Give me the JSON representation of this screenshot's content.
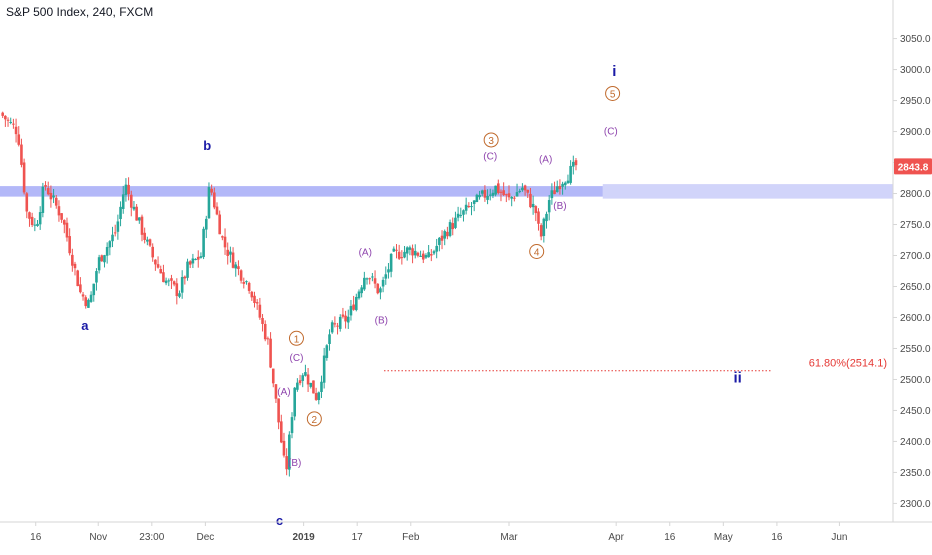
{
  "header": {
    "symbol_title": "S&P 500 Index, 240, FXCM"
  },
  "colors": {
    "up": "#26a69a",
    "down": "#ef5350",
    "zone": "#9aa0f5",
    "wave_primary": "#1a1aa6",
    "wave_intermediate": "#c06a2d",
    "wave_minor": "#8e44ad",
    "fib": "#e53935",
    "price_badge": "#ef5350",
    "axis_text": "#4a4a4a",
    "axis_line": "#d6d6d6"
  },
  "chart_data": {
    "type": "candlestick",
    "title": "S&P 500 Index, 240, FXCM",
    "y_range": [
      2270,
      3080
    ],
    "y_ticks": [
      2300,
      2350,
      2400,
      2450,
      2500,
      2550,
      2600,
      2650,
      2700,
      2750,
      2800,
      2850,
      2900,
      2950,
      3000,
      3050
    ],
    "x_ticks": [
      {
        "label": "16",
        "x": 0.04
      },
      {
        "label": "Nov",
        "x": 0.11
      },
      {
        "label": "23:00",
        "x": 0.17
      },
      {
        "label": "Dec",
        "x": 0.23
      },
      {
        "label": "2019",
        "x": 0.34
      },
      {
        "label": "17",
        "x": 0.4
      },
      {
        "label": "Feb",
        "x": 0.46
      },
      {
        "label": "Mar",
        "x": 0.57
      },
      {
        "label": "Apr",
        "x": 0.69
      },
      {
        "label": "16",
        "x": 0.75
      },
      {
        "label": "May",
        "x": 0.81
      },
      {
        "label": "16",
        "x": 0.87
      },
      {
        "label": "Jun",
        "x": 0.94
      }
    ],
    "last_price": 2843.8,
    "price_path": [
      [
        0.0,
        2930
      ],
      [
        0.02,
        2900
      ],
      [
        0.03,
        2770
      ],
      [
        0.04,
        2745
      ],
      [
        0.05,
        2815
      ],
      [
        0.07,
        2760
      ],
      [
        0.08,
        2700
      ],
      [
        0.09,
        2640
      ],
      [
        0.1,
        2620
      ],
      [
        0.11,
        2690
      ],
      [
        0.13,
        2740
      ],
      [
        0.14,
        2815
      ],
      [
        0.155,
        2755
      ],
      [
        0.17,
        2700
      ],
      [
        0.185,
        2660
      ],
      [
        0.2,
        2640
      ],
      [
        0.21,
        2680
      ],
      [
        0.225,
        2700
      ],
      [
        0.235,
        2815
      ],
      [
        0.25,
        2720
      ],
      [
        0.265,
        2680
      ],
      [
        0.28,
        2650
      ],
      [
        0.3,
        2560
      ],
      [
        0.315,
        2400
      ],
      [
        0.32,
        2345
      ],
      [
        0.33,
        2490
      ],
      [
        0.34,
        2515
      ],
      [
        0.355,
        2470
      ],
      [
        0.37,
        2580
      ],
      [
        0.39,
        2600
      ],
      [
        0.41,
        2675
      ],
      [
        0.425,
        2640
      ],
      [
        0.44,
        2700
      ],
      [
        0.46,
        2710
      ],
      [
        0.48,
        2695
      ],
      [
        0.5,
        2740
      ],
      [
        0.52,
        2770
      ],
      [
        0.54,
        2795
      ],
      [
        0.555,
        2810
      ],
      [
        0.57,
        2790
      ],
      [
        0.585,
        2810
      ],
      [
        0.6,
        2770
      ],
      [
        0.605,
        2725
      ],
      [
        0.615,
        2790
      ],
      [
        0.625,
        2815
      ],
      [
        0.635,
        2830
      ],
      [
        0.645,
        2845
      ]
    ],
    "resistance_zone": {
      "low": 2795,
      "high": 2812,
      "x_end": 0.675
    },
    "fib_level": {
      "label": "61.80%(2514.1)",
      "value": 2514.1,
      "x_start": 0.43,
      "x_end": 0.865
    },
    "wave_labels": [
      {
        "text": "a",
        "kind": "primary",
        "x": 0.095,
        "y": 2580
      },
      {
        "text": "b",
        "kind": "primary",
        "x": 0.232,
        "y": 2870
      },
      {
        "text": "c",
        "kind": "primary",
        "x": 0.313,
        "y": 2265
      },
      {
        "text": "i",
        "kind": "primary_big",
        "x": 0.688,
        "y": 2990
      },
      {
        "text": "ii",
        "kind": "primary_big",
        "x": 0.826,
        "y": 2495
      },
      {
        "text": "1",
        "kind": "intermediate",
        "x": 0.332,
        "y": 2560
      },
      {
        "text": "2",
        "kind": "intermediate",
        "x": 0.352,
        "y": 2430
      },
      {
        "text": "3",
        "kind": "intermediate",
        "x": 0.55,
        "y": 2880
      },
      {
        "text": "4",
        "kind": "intermediate",
        "x": 0.601,
        "y": 2700
      },
      {
        "text": "5",
        "kind": "intermediate",
        "x": 0.686,
        "y": 2955
      },
      {
        "text": "(C)",
        "kind": "minor",
        "x": 0.332,
        "y": 2530
      },
      {
        "text": "(A)",
        "kind": "minor",
        "x": 0.318,
        "y": 2475
      },
      {
        "text": "(B)",
        "kind": "minor",
        "x": 0.33,
        "y": 2360
      },
      {
        "text": "(A)",
        "kind": "minor",
        "x": 0.409,
        "y": 2700
      },
      {
        "text": "(B)",
        "kind": "minor",
        "x": 0.427,
        "y": 2590
      },
      {
        "text": "(C)",
        "kind": "minor",
        "x": 0.549,
        "y": 2855
      },
      {
        "text": "(A)",
        "kind": "minor",
        "x": 0.611,
        "y": 2850
      },
      {
        "text": "(B)",
        "kind": "minor",
        "x": 0.627,
        "y": 2775
      },
      {
        "text": "(C)",
        "kind": "minor",
        "x": 0.684,
        "y": 2895
      }
    ]
  }
}
